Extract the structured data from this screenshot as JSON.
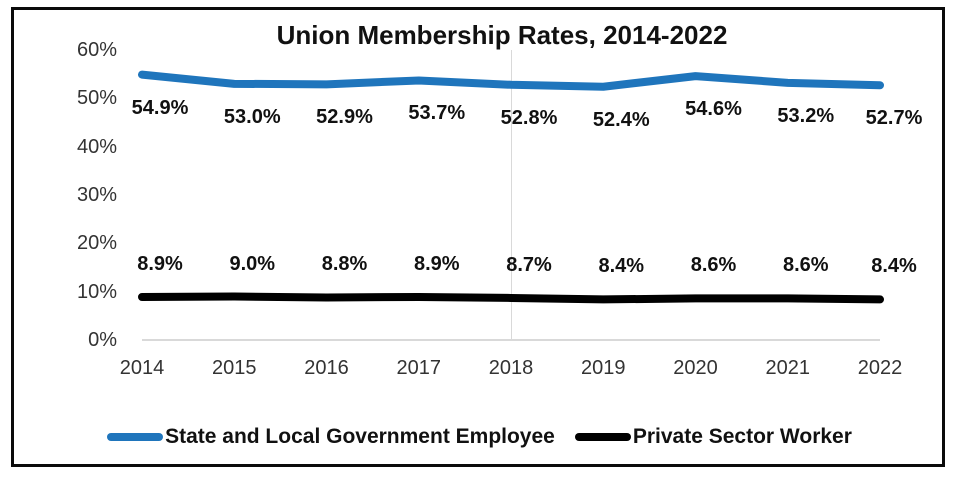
{
  "chart_data": {
    "type": "line",
    "title": "Union Membership Rates, 2014-2022",
    "categories": [
      "2014",
      "2015",
      "2016",
      "2017",
      "2018",
      "2019",
      "2020",
      "2021",
      "2022"
    ],
    "series": [
      {
        "name": "State and Local Government Employee",
        "color": "#1f75bc",
        "values": [
          54.9,
          53.0,
          52.9,
          53.7,
          52.8,
          52.4,
          54.6,
          53.2,
          52.7
        ],
        "label_position": "below"
      },
      {
        "name": "Private Sector Worker",
        "color": "#000000",
        "values": [
          8.9,
          9.0,
          8.8,
          8.9,
          8.7,
          8.4,
          8.6,
          8.6,
          8.4
        ],
        "label_position": "above"
      }
    ],
    "xlabel": "",
    "ylabel": "",
    "ylim": [
      0,
      60
    ],
    "yticks": [
      "60%",
      "50%",
      "40%",
      "30%",
      "20%",
      "10%",
      "0%"
    ],
    "grid": {
      "horizontal": false,
      "baseline": true,
      "vertical_line_at": "2018",
      "grid_color": "#d9d9d9"
    },
    "legend_position": "bottom"
  }
}
